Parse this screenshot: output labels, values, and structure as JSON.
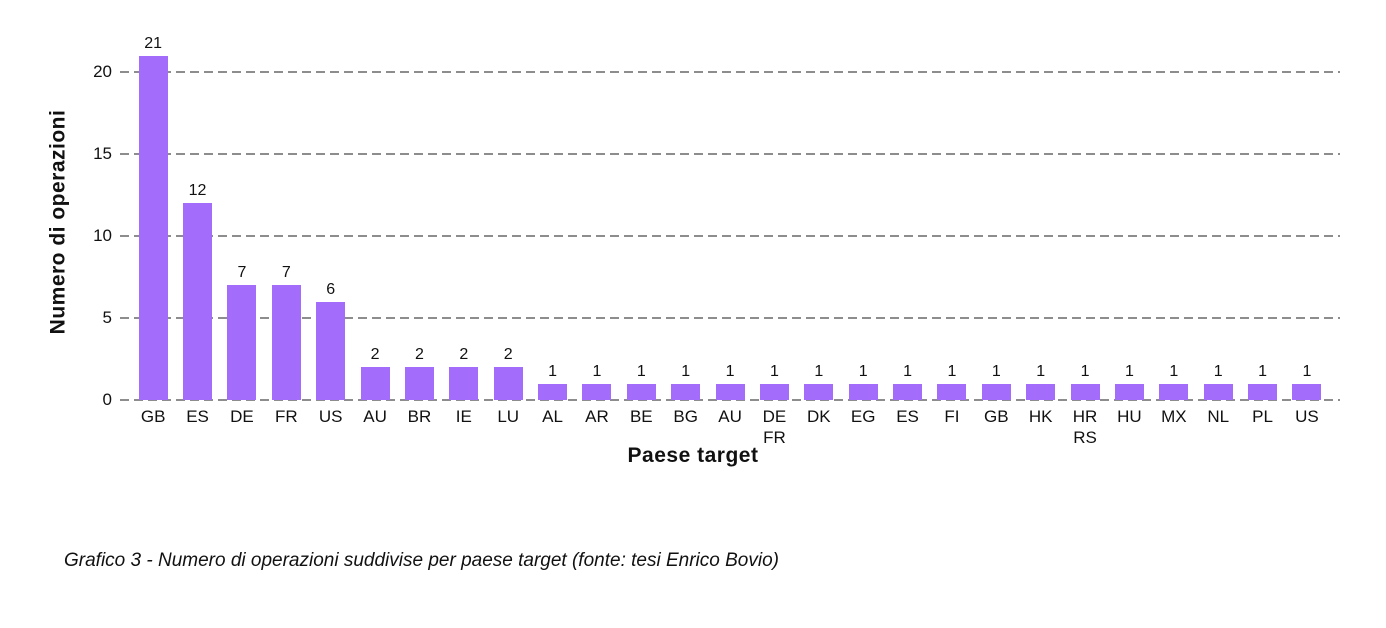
{
  "chart_data": {
    "type": "bar",
    "title": "",
    "categories": [
      "GB",
      "ES",
      "DE",
      "FR",
      "US",
      "AU",
      "BR",
      "IE",
      "LU",
      "AL",
      "AR",
      "BE",
      "BG",
      "AU",
      "DE\nFR",
      "DK",
      "EG",
      "ES",
      "FI",
      "GB",
      "HK",
      "HR\nRS",
      "HU",
      "MX",
      "NL",
      "PL",
      "US"
    ],
    "values": [
      21,
      12,
      7,
      7,
      6,
      2,
      2,
      2,
      2,
      1,
      1,
      1,
      1,
      1,
      1,
      1,
      1,
      1,
      1,
      1,
      1,
      1,
      1,
      1,
      1,
      1,
      1
    ],
    "xlabel": "Paese target",
    "ylabel": "Numero di operazioni",
    "yticks": [
      0,
      5,
      10,
      15,
      20
    ],
    "ylim": [
      0,
      23
    ],
    "grid": "horizontal-dashed",
    "legend": "none",
    "bar_color": "#a36cfb",
    "value_labels_shown": true
  },
  "caption": "Grafico 3 - Numero di operazioni suddivise per paese target (fonte: tesi Enrico Bovio)"
}
